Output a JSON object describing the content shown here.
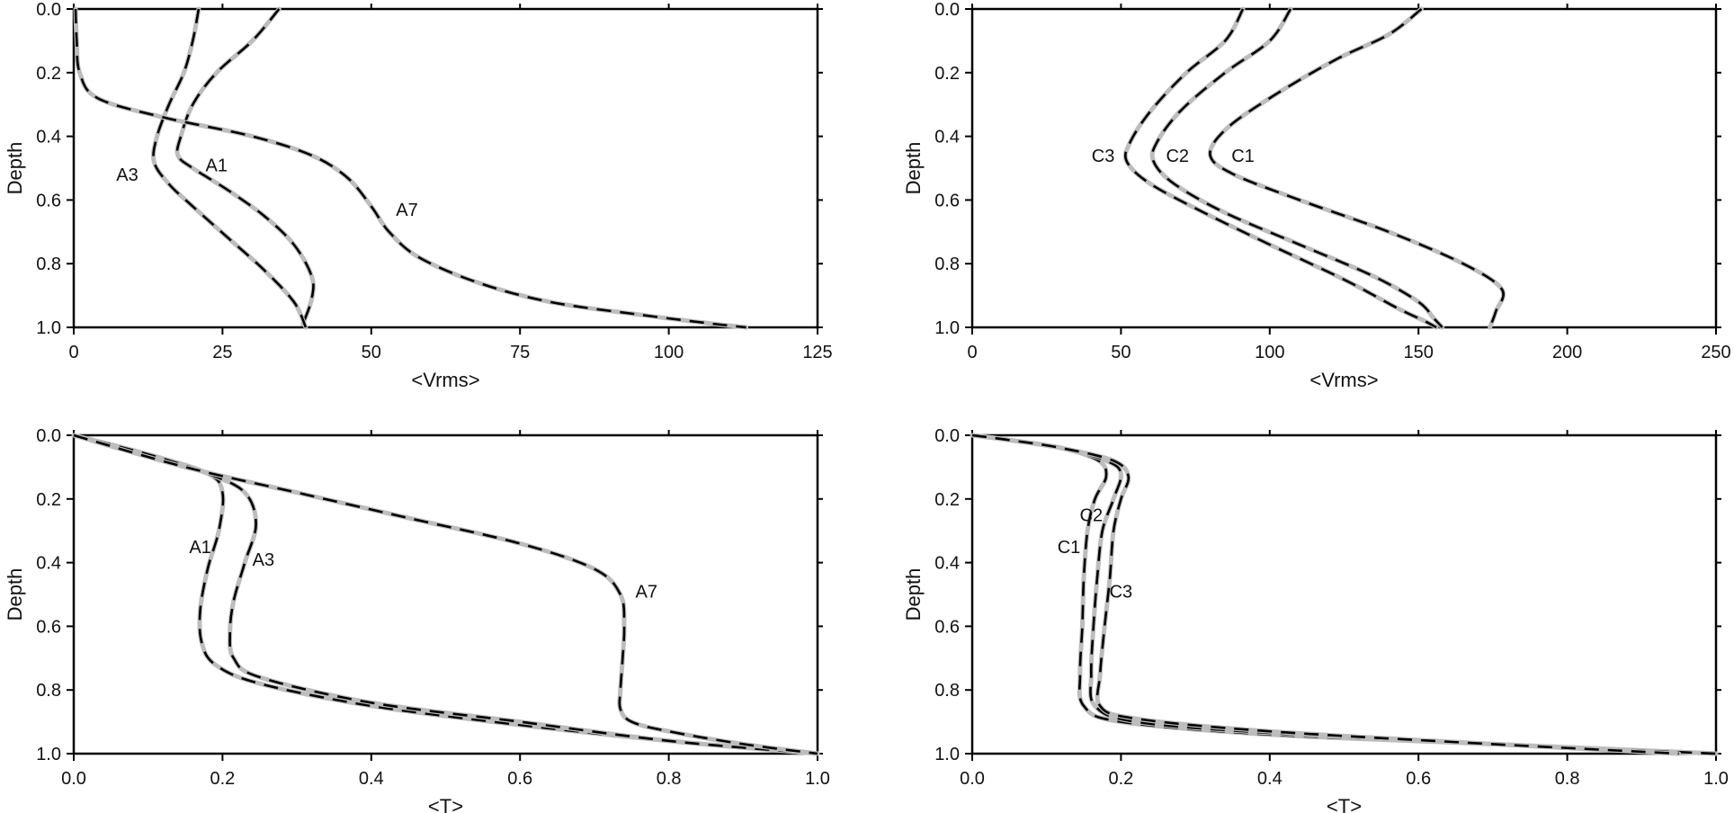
{
  "chart_data": [
    {
      "type": "line",
      "xlabel": "<Vrms>",
      "ylabel": "Depth",
      "xlim": [
        0,
        125
      ],
      "ylim": [
        1.0,
        0.0
      ],
      "xticks": [
        "0",
        "25",
        "50",
        "75",
        "100",
        "125"
      ],
      "yticks": [
        "0.0",
        "0.2",
        "0.4",
        "0.6",
        "0.8",
        "1.0"
      ],
      "grid": false,
      "line_style": {
        "under": "#bdbdbd",
        "over": "#000000",
        "dashed_over": true
      },
      "series": [
        {
          "name": "A1",
          "label_at": [
            24,
            0.49
          ],
          "points": [
            [
              34.5,
              0
            ],
            [
              30,
              0.1
            ],
            [
              24,
              0.2
            ],
            [
              20,
              0.3
            ],
            [
              18,
              0.4
            ],
            [
              17.5,
              0.46
            ],
            [
              20,
              0.5
            ],
            [
              26,
              0.57
            ],
            [
              32,
              0.65
            ],
            [
              37,
              0.74
            ],
            [
              40,
              0.84
            ],
            [
              40,
              0.91
            ],
            [
              38.5,
              0.99
            ]
          ]
        },
        {
          "name": "A3",
          "label_at": [
            9,
            0.52
          ],
          "points": [
            [
              21,
              0
            ],
            [
              20,
              0.1
            ],
            [
              18.5,
              0.2
            ],
            [
              16,
              0.3
            ],
            [
              14,
              0.4
            ],
            [
              13.5,
              0.48
            ],
            [
              16,
              0.55
            ],
            [
              20,
              0.62
            ],
            [
              26,
              0.72
            ],
            [
              32,
              0.82
            ],
            [
              37,
              0.92
            ],
            [
              39,
              1.0
            ]
          ]
        },
        {
          "name": "A7",
          "label_at": [
            56,
            0.63
          ],
          "points": [
            [
              0.3,
              0
            ],
            [
              0.5,
              0.1
            ],
            [
              1,
              0.2
            ],
            [
              4,
              0.28
            ],
            [
              15,
              0.34
            ],
            [
              30,
              0.4
            ],
            [
              40,
              0.46
            ],
            [
              46,
              0.53
            ],
            [
              50,
              0.62
            ],
            [
              53,
              0.7
            ],
            [
              58,
              0.78
            ],
            [
              68,
              0.86
            ],
            [
              80,
              0.92
            ],
            [
              95,
              0.96
            ],
            [
              108,
              0.99
            ],
            [
              113,
              1.0
            ]
          ]
        }
      ]
    },
    {
      "type": "line",
      "xlabel": "<Vrms>",
      "ylabel": "Depth",
      "xlim": [
        0,
        250
      ],
      "ylim": [
        1.0,
        0.0
      ],
      "xticks": [
        "0",
        "50",
        "100",
        "150",
        "200",
        "250"
      ],
      "yticks": [
        "0.0",
        "0.2",
        "0.4",
        "0.6",
        "0.8",
        "1.0"
      ],
      "grid": false,
      "line_style": {
        "under": "#bdbdbd",
        "over": "#000000",
        "dashed_over": true
      },
      "series": [
        {
          "name": "C1",
          "label_at": [
            91,
            0.46
          ],
          "points": [
            [
              151,
              0
            ],
            [
              140,
              0.08
            ],
            [
              122,
              0.16
            ],
            [
              100,
              0.28
            ],
            [
              85,
              0.38
            ],
            [
              80,
              0.46
            ],
            [
              88,
              0.52
            ],
            [
              110,
              0.6
            ],
            [
              140,
              0.7
            ],
            [
              165,
              0.8
            ],
            [
              178,
              0.88
            ],
            [
              176,
              0.95
            ],
            [
              174,
              1.0
            ]
          ]
        },
        {
          "name": "C2",
          "label_at": [
            69,
            0.46
          ],
          "points": [
            [
              107,
              0
            ],
            [
              100,
              0.1
            ],
            [
              85,
              0.2
            ],
            [
              70,
              0.32
            ],
            [
              62,
              0.42
            ],
            [
              61,
              0.48
            ],
            [
              68,
              0.55
            ],
            [
              85,
              0.64
            ],
            [
              110,
              0.74
            ],
            [
              135,
              0.84
            ],
            [
              150,
              0.92
            ],
            [
              155,
              0.97
            ],
            [
              158,
              1.0
            ]
          ]
        },
        {
          "name": "C3",
          "label_at": [
            44,
            0.46
          ],
          "points": [
            [
              91,
              0
            ],
            [
              85,
              0.1
            ],
            [
              72,
              0.2
            ],
            [
              60,
              0.32
            ],
            [
              53,
              0.42
            ],
            [
              52,
              0.48
            ],
            [
              60,
              0.55
            ],
            [
              78,
              0.64
            ],
            [
              100,
              0.74
            ],
            [
              125,
              0.85
            ],
            [
              143,
              0.94
            ],
            [
              152,
              0.98
            ],
            [
              156,
              1.0
            ]
          ]
        }
      ]
    },
    {
      "type": "line",
      "xlabel": "<T>",
      "ylabel": "Depth",
      "xlim": [
        0.0,
        1.0
      ],
      "ylim": [
        1.0,
        0.0
      ],
      "xticks": [
        "0.0",
        "0.2",
        "0.4",
        "0.6",
        "0.8",
        "1.0"
      ],
      "yticks": [
        "0.0",
        "0.2",
        "0.4",
        "0.6",
        "0.8",
        "1.0"
      ],
      "grid": false,
      "line_style": {
        "under": "#bdbdbd",
        "over": "#000000",
        "dashed_over": true
      },
      "series": [
        {
          "name": "A1",
          "label_at": [
            0.17,
            0.35
          ],
          "points": [
            [
              0,
              0
            ],
            [
              0.1,
              0.06
            ],
            [
              0.18,
              0.12
            ],
            [
              0.2,
              0.18
            ],
            [
              0.195,
              0.3
            ],
            [
              0.18,
              0.42
            ],
            [
              0.17,
              0.55
            ],
            [
              0.172,
              0.65
            ],
            [
              0.19,
              0.72
            ],
            [
              0.25,
              0.78
            ],
            [
              0.4,
              0.85
            ],
            [
              0.6,
              0.91
            ],
            [
              0.8,
              0.96
            ],
            [
              1.0,
              1.0
            ]
          ]
        },
        {
          "name": "A3",
          "label_at": [
            0.255,
            0.39
          ],
          "points": [
            [
              0,
              0
            ],
            [
              0.1,
              0.06
            ],
            [
              0.18,
              0.12
            ],
            [
              0.23,
              0.18
            ],
            [
              0.245,
              0.28
            ],
            [
              0.23,
              0.4
            ],
            [
              0.215,
              0.52
            ],
            [
              0.21,
              0.62
            ],
            [
              0.215,
              0.7
            ],
            [
              0.25,
              0.76
            ],
            [
              0.4,
              0.84
            ],
            [
              0.6,
              0.9
            ],
            [
              0.8,
              0.96
            ],
            [
              1.0,
              1.0
            ]
          ]
        },
        {
          "name": "A7",
          "label_at": [
            0.77,
            0.49
          ],
          "points": [
            [
              0,
              0
            ],
            [
              0.15,
              0.1
            ],
            [
              0.3,
              0.18
            ],
            [
              0.45,
              0.26
            ],
            [
              0.6,
              0.34
            ],
            [
              0.7,
              0.42
            ],
            [
              0.735,
              0.5
            ],
            [
              0.74,
              0.6
            ],
            [
              0.738,
              0.7
            ],
            [
              0.735,
              0.8
            ],
            [
              0.735,
              0.86
            ],
            [
              0.75,
              0.9
            ],
            [
              0.8,
              0.93
            ],
            [
              0.9,
              0.97
            ],
            [
              1.0,
              1.0
            ]
          ]
        }
      ]
    },
    {
      "type": "line",
      "xlabel": "<T>",
      "ylabel": "Depth",
      "xlim": [
        0.0,
        1.0
      ],
      "ylim": [
        1.0,
        0.0
      ],
      "xticks": [
        "0.0",
        "0.2",
        "0.4",
        "0.6",
        "0.8",
        "1.0"
      ],
      "yticks": [
        "0.0",
        "0.2",
        "0.4",
        "0.6",
        "0.8",
        "1.0"
      ],
      "grid": false,
      "line_style": {
        "under": "#bdbdbd",
        "over": "#000000",
        "dashed_over": true
      },
      "series": [
        {
          "name": "C1",
          "label_at": [
            0.13,
            0.35
          ],
          "points": [
            [
              0,
              0
            ],
            [
              0.05,
              0.015
            ],
            [
              0.12,
              0.04
            ],
            [
              0.17,
              0.08
            ],
            [
              0.18,
              0.13
            ],
            [
              0.165,
              0.2
            ],
            [
              0.155,
              0.3
            ],
            [
              0.15,
              0.45
            ],
            [
              0.148,
              0.6
            ],
            [
              0.145,
              0.75
            ],
            [
              0.15,
              0.85
            ],
            [
              0.2,
              0.9
            ],
            [
              0.4,
              0.94
            ],
            [
              0.7,
              0.97
            ],
            [
              1.0,
              1.0
            ]
          ]
        },
        {
          "name": "C2",
          "label_at": [
            0.16,
            0.25
          ],
          "points": [
            [
              0,
              0
            ],
            [
              0.05,
              0.015
            ],
            [
              0.12,
              0.04
            ],
            [
              0.18,
              0.08
            ],
            [
              0.2,
              0.12
            ],
            [
              0.19,
              0.2
            ],
            [
              0.175,
              0.3
            ],
            [
              0.168,
              0.45
            ],
            [
              0.163,
              0.6
            ],
            [
              0.16,
              0.75
            ],
            [
              0.165,
              0.85
            ],
            [
              0.22,
              0.9
            ],
            [
              0.4,
              0.935
            ],
            [
              0.7,
              0.97
            ],
            [
              1.0,
              1.0
            ]
          ]
        },
        {
          "name": "C3",
          "label_at": [
            0.2,
            0.49
          ],
          "points": [
            [
              0,
              0
            ],
            [
              0.05,
              0.015
            ],
            [
              0.12,
              0.04
            ],
            [
              0.19,
              0.08
            ],
            [
              0.21,
              0.13
            ],
            [
              0.2,
              0.2
            ],
            [
              0.19,
              0.3
            ],
            [
              0.185,
              0.45
            ],
            [
              0.178,
              0.6
            ],
            [
              0.172,
              0.75
            ],
            [
              0.172,
              0.85
            ],
            [
              0.22,
              0.89
            ],
            [
              0.4,
              0.93
            ],
            [
              0.7,
              0.97
            ],
            [
              0.95,
              1.0
            ]
          ]
        }
      ]
    }
  ]
}
